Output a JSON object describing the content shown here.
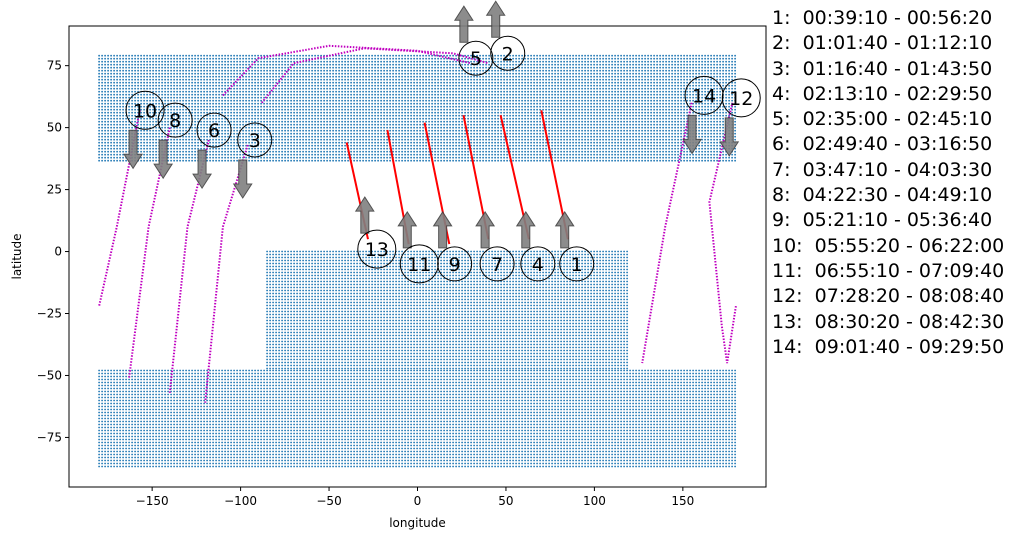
{
  "chart_data": {
    "type": "scatter",
    "xlabel": "longitude",
    "ylabel": "latitude",
    "xlim": [
      -197,
      197
    ],
    "ylim": [
      -95,
      91
    ],
    "xticks": [
      -150,
      -100,
      -50,
      0,
      50,
      100,
      150
    ],
    "yticks": [
      -75,
      -50,
      -25,
      0,
      25,
      50,
      75
    ],
    "colors": {
      "coverage": "#1f77b4",
      "track": "#c000c0",
      "track_active": "#ff0000",
      "arrow": "#808080"
    },
    "coverage_regions": [
      {
        "lat_from": 36,
        "lat_to": 79,
        "lon_from": -180,
        "lon_to": 180
      },
      {
        "lat_from": -87,
        "lat_to": -48,
        "lon_from": -180,
        "lon_to": 180
      },
      {
        "lat_from": -48,
        "lat_to": 0,
        "lon_from": -85,
        "lon_to": 120
      }
    ],
    "passes": [
      {
        "label": "1",
        "time": "00:39:10 - 00:56:20",
        "lon": 90,
        "lat": -5,
        "direction": "up",
        "track": [
          [
            70,
            57
          ],
          [
            85,
            5
          ]
        ],
        "active": true
      },
      {
        "label": "2",
        "time": "01:01:40 - 01:12:10",
        "lon": 51,
        "lat": 80,
        "direction": "up",
        "track": [
          [
            -88,
            60
          ],
          [
            -70,
            76
          ],
          [
            -30,
            82
          ],
          [
            20,
            80
          ],
          [
            40,
            76
          ]
        ],
        "active": false
      },
      {
        "label": "3",
        "time": "01:16:40 - 01:43:50",
        "lon": -92,
        "lat": 45,
        "direction": "down",
        "track": [
          [
            -96,
            43
          ],
          [
            -110,
            10
          ],
          [
            -120,
            -61
          ]
        ],
        "active": false
      },
      {
        "label": "4",
        "time": "02:13:10 - 02:29:50",
        "lon": 68,
        "lat": -5,
        "direction": "up",
        "track": [
          [
            47,
            55
          ],
          [
            63,
            5
          ]
        ],
        "active": true
      },
      {
        "label": "5",
        "time": "02:35:00 - 02:45:10",
        "lon": 33,
        "lat": 78,
        "direction": "up",
        "track": [
          [
            -110,
            63
          ],
          [
            -90,
            78
          ],
          [
            -50,
            83
          ],
          [
            0,
            81
          ],
          [
            30,
            76
          ]
        ],
        "active": false
      },
      {
        "label": "6",
        "time": "02:49:40 - 03:16:50",
        "lon": -115,
        "lat": 49,
        "direction": "down",
        "track": [
          [
            -118,
            45
          ],
          [
            -130,
            10
          ],
          [
            -140,
            -57
          ]
        ],
        "active": false
      },
      {
        "label": "7",
        "time": "03:47:10 - 04:03:30",
        "lon": 45,
        "lat": -5,
        "direction": "up",
        "track": [
          [
            26,
            55
          ],
          [
            40,
            5
          ]
        ],
        "active": true
      },
      {
        "label": "8",
        "time": "04:22:30 - 04:49:10",
        "lon": -137,
        "lat": 53,
        "direction": "down",
        "track": [
          [
            -140,
            50
          ],
          [
            -152,
            10
          ],
          [
            -163,
            -51
          ]
        ],
        "active": false
      },
      {
        "label": "9",
        "time": "05:21:10 - 05:36:40",
        "lon": 21,
        "lat": -5,
        "direction": "up",
        "track": [
          [
            4,
            52
          ],
          [
            18,
            3
          ]
        ],
        "active": true
      },
      {
        "label": "10",
        "time": "05:55:20 - 06:22:00",
        "lon": -154,
        "lat": 57,
        "direction": "down",
        "track": [
          [
            -157,
            57
          ],
          [
            -170,
            10
          ],
          [
            -180,
            -22
          ]
        ],
        "active": false
      },
      {
        "label": "11",
        "time": "06:55:10 - 07:09:40",
        "lon": 1,
        "lat": -5,
        "direction": "up",
        "track": [
          [
            -17,
            49
          ],
          [
            -5,
            3
          ]
        ],
        "active": true
      },
      {
        "label": "12",
        "time": "07:28:20 - 08:08:40",
        "lon": 183,
        "lat": 62,
        "direction": "down",
        "track": [
          [
            180,
            -22
          ],
          [
            175,
            -45
          ],
          [
            172,
            -30
          ],
          [
            165,
            20
          ],
          [
            178,
            60
          ]
        ],
        "active": false
      },
      {
        "label": "13",
        "time": "08:30:20 - 08:42:30",
        "lon": -23,
        "lat": 1,
        "direction": "up",
        "track": [
          [
            -40,
            44
          ],
          [
            -28,
            5
          ]
        ],
        "active": true
      },
      {
        "label": "14",
        "time": "09:01:40 - 09:29:50",
        "lon": 162,
        "lat": 63,
        "direction": "down",
        "track": [
          [
            155,
            60
          ],
          [
            140,
            10
          ],
          [
            127,
            -45
          ]
        ],
        "active": false
      }
    ]
  }
}
